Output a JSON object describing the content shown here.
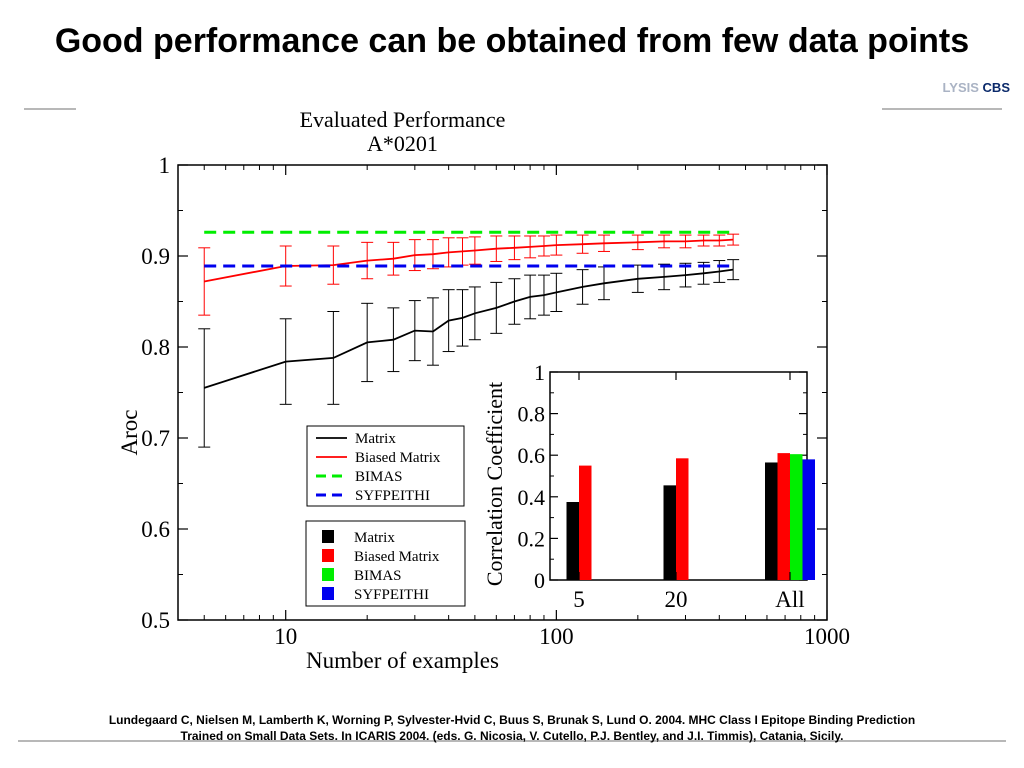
{
  "slide": {
    "title": "Good performance can be obtained from few data points",
    "logo_part1": "LYSIS",
    "logo_part2": "CBS",
    "citation_line1": "Lundegaard C, Nielsen M, Lamberth K, Worning P, Sylvester-Hvid C, Buus S, Brunak S, Lund O. 2004. MHC Class I Epitope Binding Prediction",
    "citation_line2": "Trained on Small Data Sets. In ICARIS 2004. (eds. G. Nicosia, V. Cutello, P.J. Bentley, and J.I. Timmis), Catania, Sicily."
  },
  "chart_data": [
    {
      "type": "line",
      "title": "Evaluated Performance",
      "subtitle": "A*0201",
      "xlabel": "Number of examples",
      "ylabel": "Aroc",
      "xscale": "log",
      "xlim": [
        4,
        1000
      ],
      "ylim": [
        0.5,
        1.0
      ],
      "xticks": [
        10,
        100,
        1000
      ],
      "xtick_labels": [
        "10",
        "100",
        "1000"
      ],
      "yticks": [
        0.5,
        0.6,
        0.7,
        0.8,
        0.9,
        1.0
      ],
      "ytick_labels": [
        "0.5",
        "0.6",
        "0.7",
        "0.8",
        "0.9",
        "1"
      ],
      "legend_position": "center-right",
      "series": [
        {
          "name": "Matrix",
          "color": "#000000",
          "style": "solid",
          "x": [
            5,
            10,
            15,
            20,
            25,
            30,
            35,
            40,
            45,
            50,
            60,
            70,
            80,
            90,
            100,
            125,
            150,
            200,
            250,
            300,
            350,
            400,
            450
          ],
          "y": [
            0.755,
            0.784,
            0.788,
            0.805,
            0.808,
            0.818,
            0.817,
            0.829,
            0.832,
            0.837,
            0.843,
            0.85,
            0.855,
            0.857,
            0.86,
            0.866,
            0.87,
            0.875,
            0.877,
            0.879,
            0.881,
            0.883,
            0.885
          ],
          "err": [
            0.065,
            0.047,
            0.051,
            0.043,
            0.035,
            0.033,
            0.037,
            0.034,
            0.031,
            0.029,
            0.028,
            0.025,
            0.024,
            0.022,
            0.021,
            0.019,
            0.018,
            0.015,
            0.014,
            0.013,
            0.012,
            0.012,
            0.011
          ]
        },
        {
          "name": "Biased Matrix",
          "color": "#ff0000",
          "style": "solid",
          "x": [
            5,
            10,
            15,
            20,
            25,
            30,
            35,
            40,
            45,
            50,
            60,
            70,
            80,
            90,
            100,
            125,
            150,
            200,
            250,
            300,
            350,
            400,
            450
          ],
          "y": [
            0.872,
            0.889,
            0.89,
            0.895,
            0.897,
            0.901,
            0.902,
            0.904,
            0.905,
            0.906,
            0.908,
            0.909,
            0.91,
            0.911,
            0.912,
            0.913,
            0.914,
            0.915,
            0.916,
            0.916,
            0.917,
            0.917,
            0.918
          ],
          "err": [
            0.037,
            0.022,
            0.021,
            0.02,
            0.018,
            0.017,
            0.016,
            0.016,
            0.015,
            0.015,
            0.014,
            0.013,
            0.012,
            0.011,
            0.011,
            0.01,
            0.009,
            0.008,
            0.007,
            0.007,
            0.006,
            0.006,
            0.006
          ]
        },
        {
          "name": "BIMAS",
          "color": "#00ee00",
          "style": "dashed",
          "x": [
            5,
            450
          ],
          "y": [
            0.926,
            0.926
          ]
        },
        {
          "name": "SYFPEITHI",
          "color": "#0000ee",
          "style": "dashed",
          "x": [
            5,
            450
          ],
          "y": [
            0.889,
            0.889
          ]
        }
      ]
    },
    {
      "type": "bar",
      "ylabel": "Correlation Coefficient",
      "ylim": [
        0,
        1
      ],
      "yticks": [
        0,
        0.2,
        0.4,
        0.6,
        0.8,
        1
      ],
      "ytick_labels": [
        "0",
        "0.2",
        "0.4",
        "0.6",
        "0.8",
        "1"
      ],
      "categories": [
        "5",
        "20",
        "All"
      ],
      "legend_position": "left",
      "series": [
        {
          "name": "Matrix",
          "color": "#000000",
          "values": [
            0.375,
            0.455,
            0.565
          ]
        },
        {
          "name": "Biased Matrix",
          "color": "#ff0000",
          "values": [
            0.55,
            0.585,
            0.61
          ]
        },
        {
          "name": "BIMAS",
          "color": "#00ee00",
          "values": [
            null,
            null,
            0.605
          ]
        },
        {
          "name": "SYFPEITHI",
          "color": "#0000ee",
          "values": [
            null,
            null,
            0.58
          ]
        }
      ]
    }
  ]
}
